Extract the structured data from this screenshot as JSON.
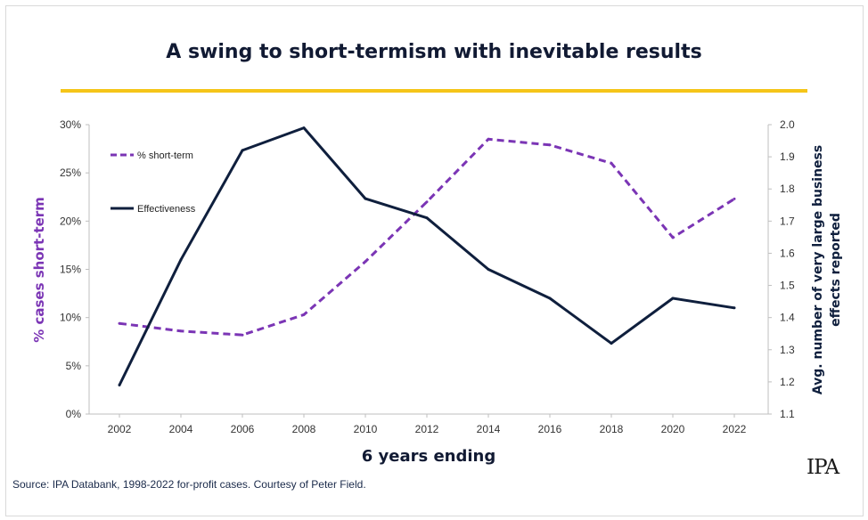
{
  "title": "A swing to short-termism with inevitable results",
  "source": "Source: IPA Databank, 1998-2022 for-profit cases. Courtesy of Peter Field.",
  "logo_text": "IPA",
  "colors": {
    "accent_bar": "#f5c518",
    "short_term": "#7b35b5",
    "effectiveness": "#0f1f3d"
  },
  "chart_data": {
    "type": "line",
    "title": "A swing to short-termism with inevitable results",
    "xlabel": "6 years ending",
    "ylabel_left": "% cases short-term",
    "ylabel_right": "Avg. number of very large business effects reported",
    "x": [
      "2002",
      "2004",
      "2006",
      "2008",
      "2010",
      "2012",
      "2014",
      "2016",
      "2018",
      "2020",
      "2022"
    ],
    "ylim_left": [
      0,
      30
    ],
    "yticks_left": [
      "0%",
      "5%",
      "10%",
      "15%",
      "20%",
      "25%",
      "30%"
    ],
    "ylim_right": [
      1.1,
      2.0
    ],
    "yticks_right": [
      "1.1",
      "1.2",
      "1.3",
      "1.4",
      "1.5",
      "1.6",
      "1.7",
      "1.8",
      "1.9",
      "2.0"
    ],
    "legend_position": "top-left",
    "series": [
      {
        "name": "% short-term",
        "axis": "left",
        "style": "dashed",
        "color": "#7b35b5",
        "values": [
          9.4,
          8.6,
          8.2,
          10.3,
          15.8,
          22.0,
          28.5,
          27.9,
          26.0,
          18.3,
          22.3
        ]
      },
      {
        "name": "Effectiveness",
        "axis": "right",
        "style": "solid",
        "color": "#0f1f3d",
        "values": [
          1.19,
          1.58,
          1.92,
          1.99,
          1.77,
          1.71,
          1.55,
          1.46,
          1.32,
          1.46,
          1.43
        ]
      }
    ]
  }
}
